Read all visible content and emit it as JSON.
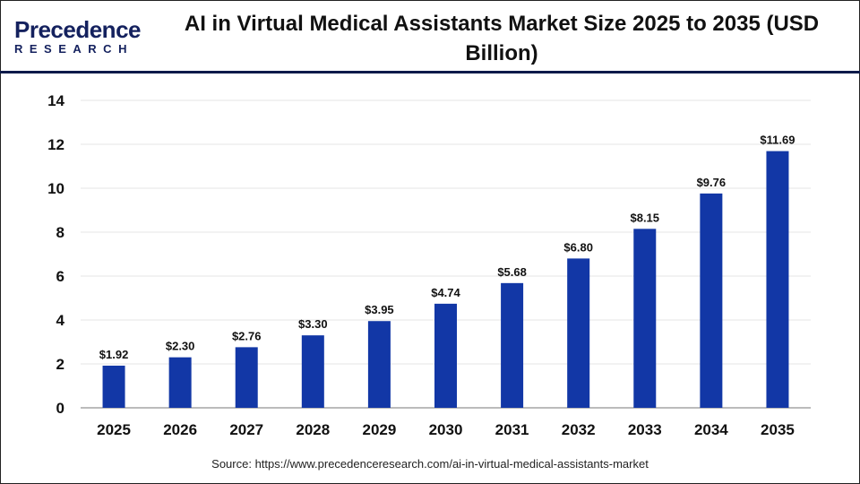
{
  "logo": {
    "brand": "Precedence",
    "sub": "RESEARCH"
  },
  "title": "AI in Virtual Medical Assistants Market Size 2025 to 2035 (USD Billion)",
  "source": "Source: https://www.precedenceresearch.com/ai-in-virtual-medical-assistants-market",
  "chart_data": {
    "type": "bar",
    "title": "AI in Virtual Medical Assistants Market Size 2025 to 2035 (USD Billion)",
    "categories": [
      "2025",
      "2026",
      "2027",
      "2028",
      "2029",
      "2030",
      "2031",
      "2032",
      "2033",
      "2034",
      "2035"
    ],
    "values": [
      1.92,
      2.3,
      2.76,
      3.3,
      3.95,
      4.74,
      5.68,
      6.8,
      8.15,
      9.76,
      11.69
    ],
    "data_labels": [
      "$1.92",
      "$2.30",
      "$2.76",
      "$3.30",
      "$3.95",
      "$4.74",
      "$5.68",
      "$6.80",
      "$8.15",
      "$9.76",
      "$11.69"
    ],
    "ylim": [
      0,
      14
    ],
    "yticks": [
      0,
      2,
      4,
      6,
      8,
      10,
      12,
      14
    ],
    "grid": true,
    "bar_color": "#1237a6",
    "xlabel": "",
    "ylabel": ""
  }
}
